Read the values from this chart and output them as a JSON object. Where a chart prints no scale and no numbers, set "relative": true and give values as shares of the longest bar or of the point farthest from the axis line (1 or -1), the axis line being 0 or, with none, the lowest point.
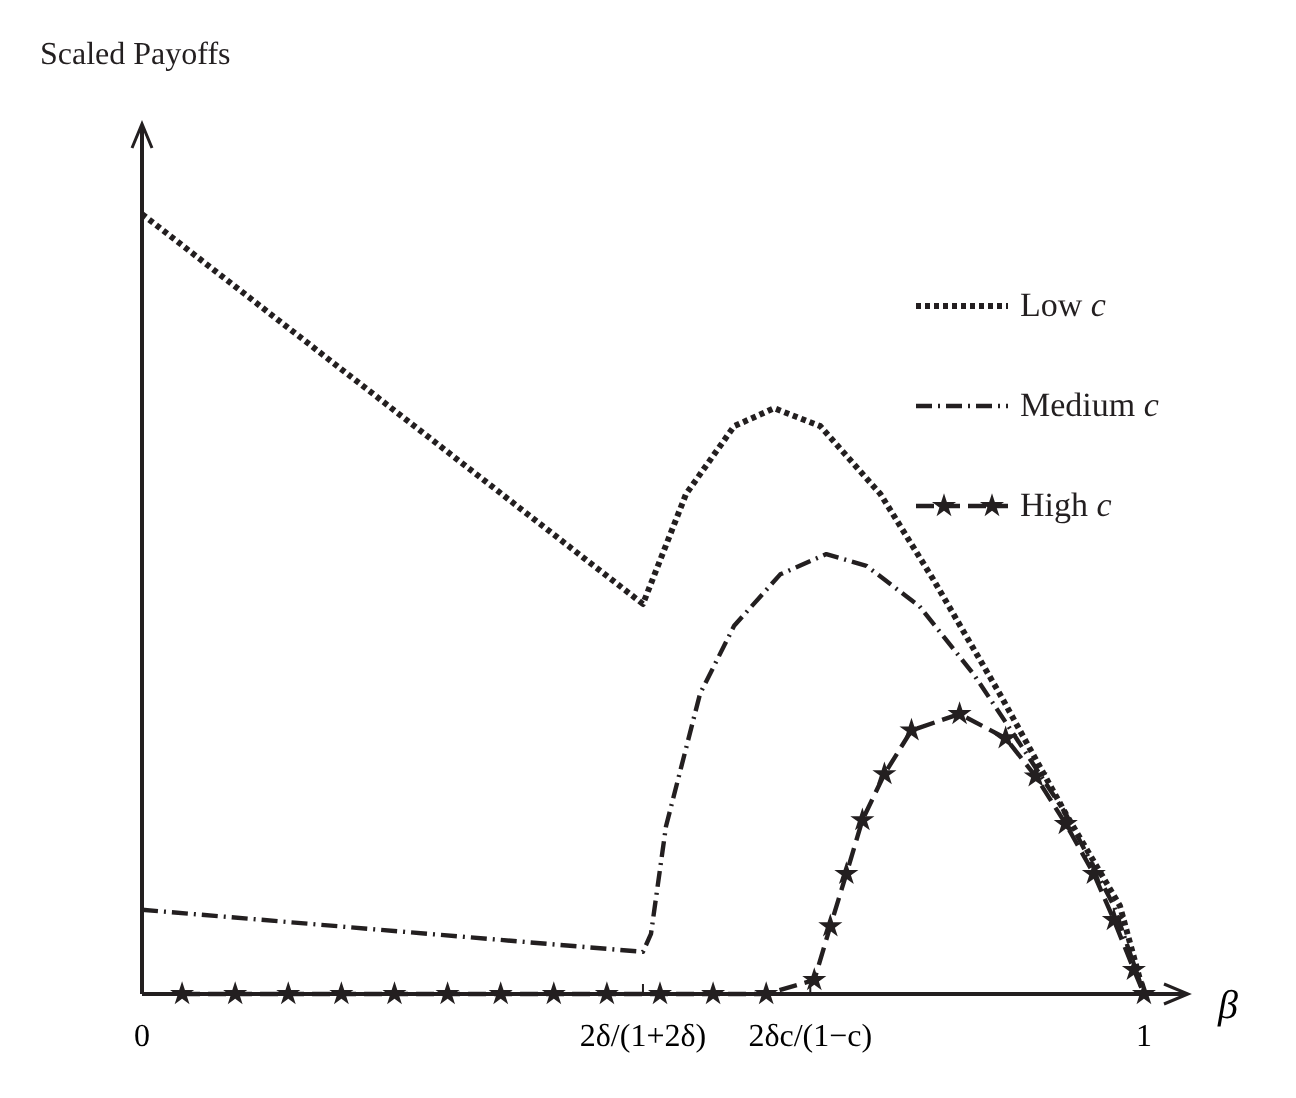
{
  "chart_data": {
    "type": "line",
    "relative": true,
    "ylabel": "Scaled Payoffs",
    "xlabel": "β",
    "xlim": [
      0,
      1.04
    ],
    "xticks": [
      0,
      {
        "value": 0.5,
        "label": "2δ/(1+2δ)"
      },
      {
        "value": 0.667,
        "label": "2δc/(1−c)"
      },
      1
    ],
    "legend": "top right",
    "series": [
      {
        "name": "Low c",
        "color": "#231f20",
        "line_style": "dotted",
        "marker": "none",
        "x": [
          0,
          0.5,
          0.543,
          0.591,
          0.631,
          0.677,
          0.737,
          0.79,
          0.856,
          0.922,
          0.976,
          1
        ],
        "values": [
          1,
          0.5,
          0.641,
          0.728,
          0.751,
          0.728,
          0.641,
          0.531,
          0.385,
          0.231,
          0.113,
          0
        ]
      },
      {
        "name": "Medium c",
        "color": "#231f20",
        "line_style": "dashdot",
        "marker": "none",
        "x": [
          0,
          0.5,
          0.508,
          0.523,
          0.557,
          0.591,
          0.637,
          0.683,
          0.723,
          0.776,
          0.83,
          0.87,
          0.922,
          0.97,
          1
        ],
        "values": [
          0.108,
          0.054,
          0.077,
          0.215,
          0.385,
          0.472,
          0.538,
          0.564,
          0.549,
          0.497,
          0.41,
          0.333,
          0.231,
          0.113,
          0
        ]
      },
      {
        "name": "High c",
        "color": "#231f20",
        "line_style": "dashed",
        "marker": "star",
        "x": [
          0.04,
          0.093,
          0.146,
          0.199,
          0.252,
          0.305,
          0.358,
          0.411,
          0.464,
          0.517,
          0.57,
          0.623,
          0.671,
          0.687,
          0.703,
          0.719,
          0.741,
          0.768,
          0.816,
          0.862,
          0.892,
          0.922,
          0.95,
          0.97,
          0.99,
          1
        ],
        "values": [
          0,
          0,
          0,
          0,
          0,
          0,
          0,
          0,
          0,
          0,
          0,
          0,
          0.018,
          0.087,
          0.154,
          0.223,
          0.282,
          0.338,
          0.359,
          0.328,
          0.279,
          0.218,
          0.154,
          0.095,
          0.031,
          0
        ]
      }
    ]
  }
}
